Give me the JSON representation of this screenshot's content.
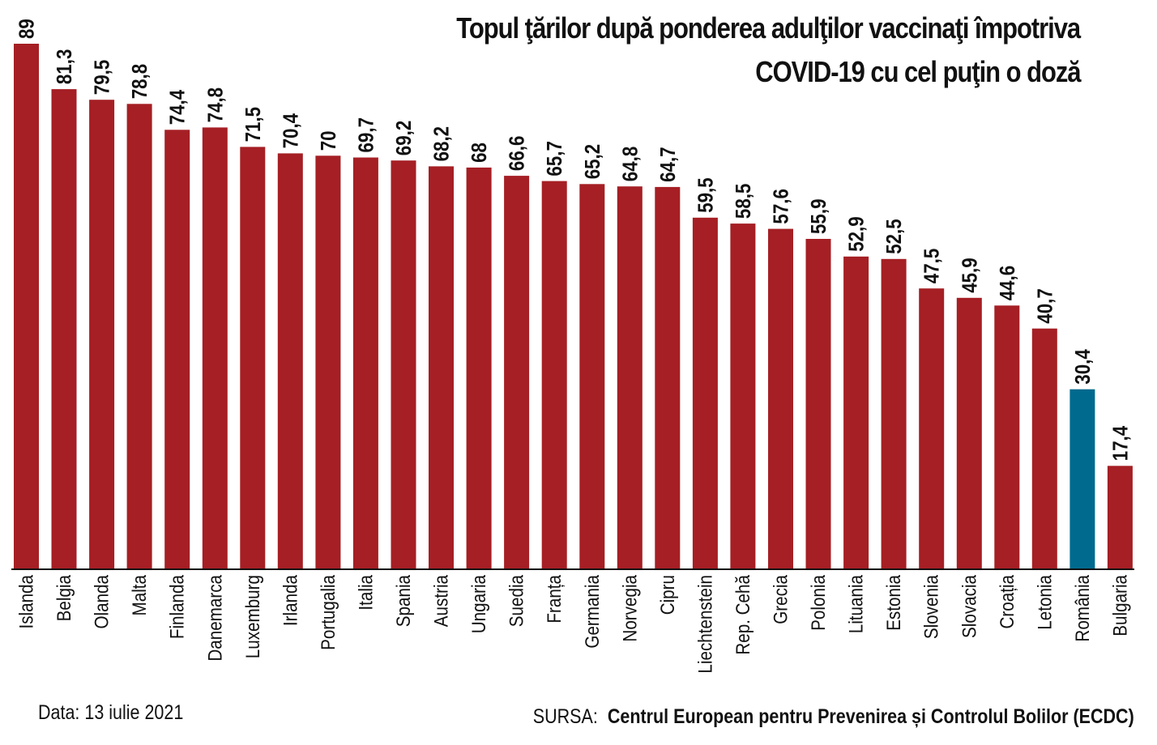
{
  "chart_data": {
    "type": "bar",
    "title_lines": [
      "Topul ţărilor după ponderea adulţilor vaccinaţi împotriva",
      "COVID-19 cu cel puţin o doză"
    ],
    "categories": [
      "Islanda",
      "Belgia",
      "Olanda",
      "Malta",
      "Finlanda",
      "Danemarca",
      "Luxemburg",
      "Irlanda",
      "Portugalia",
      "Italia",
      "Spania",
      "Austria",
      "Ungaria",
      "Suedia",
      "Franța",
      "Germania",
      "Norvegia",
      "Cipru",
      "Liechtenstein",
      "Rep. Cehă",
      "Grecia",
      "Polonia",
      "Lituania",
      "Estonia",
      "Slovenia",
      "Slovacia",
      "Croația",
      "Letonia",
      "România",
      "Bulgaria"
    ],
    "values": [
      89,
      81.3,
      79.5,
      78.8,
      74.4,
      74.8,
      71.5,
      70.4,
      70,
      69.7,
      69.2,
      68.2,
      68,
      66.6,
      65.7,
      65.2,
      64.8,
      64.7,
      59.5,
      58.5,
      57.6,
      55.9,
      52.9,
      52.5,
      47.5,
      45.9,
      44.6,
      40.7,
      30.4,
      17.4
    ],
    "value_labels": [
      "89",
      "81,3",
      "79,5",
      "78,8",
      "74,4",
      "74,8",
      "71,5",
      "70,4",
      "70",
      "69,7",
      "69,2",
      "68,2",
      "68",
      "66,6",
      "65,7",
      "65,2",
      "64,8",
      "64,7",
      "59,5",
      "58,5",
      "57,6",
      "55,9",
      "52,9",
      "52,5",
      "47,5",
      "45,9",
      "44,6",
      "40,7",
      "30,4",
      "17,4"
    ],
    "highlight_category": "România",
    "colors": {
      "bar": "#a51f24",
      "highlight": "#006a8e",
      "axis": "#111111"
    },
    "ylim": [
      0,
      89
    ],
    "grid": false,
    "legend": "none"
  },
  "footer": {
    "date": "Data: 13 iulie 2021",
    "source_label": "SURSA:",
    "source_name": "Centrul European pentru Prevenirea și Controlul Bolilor (ECDC)"
  }
}
